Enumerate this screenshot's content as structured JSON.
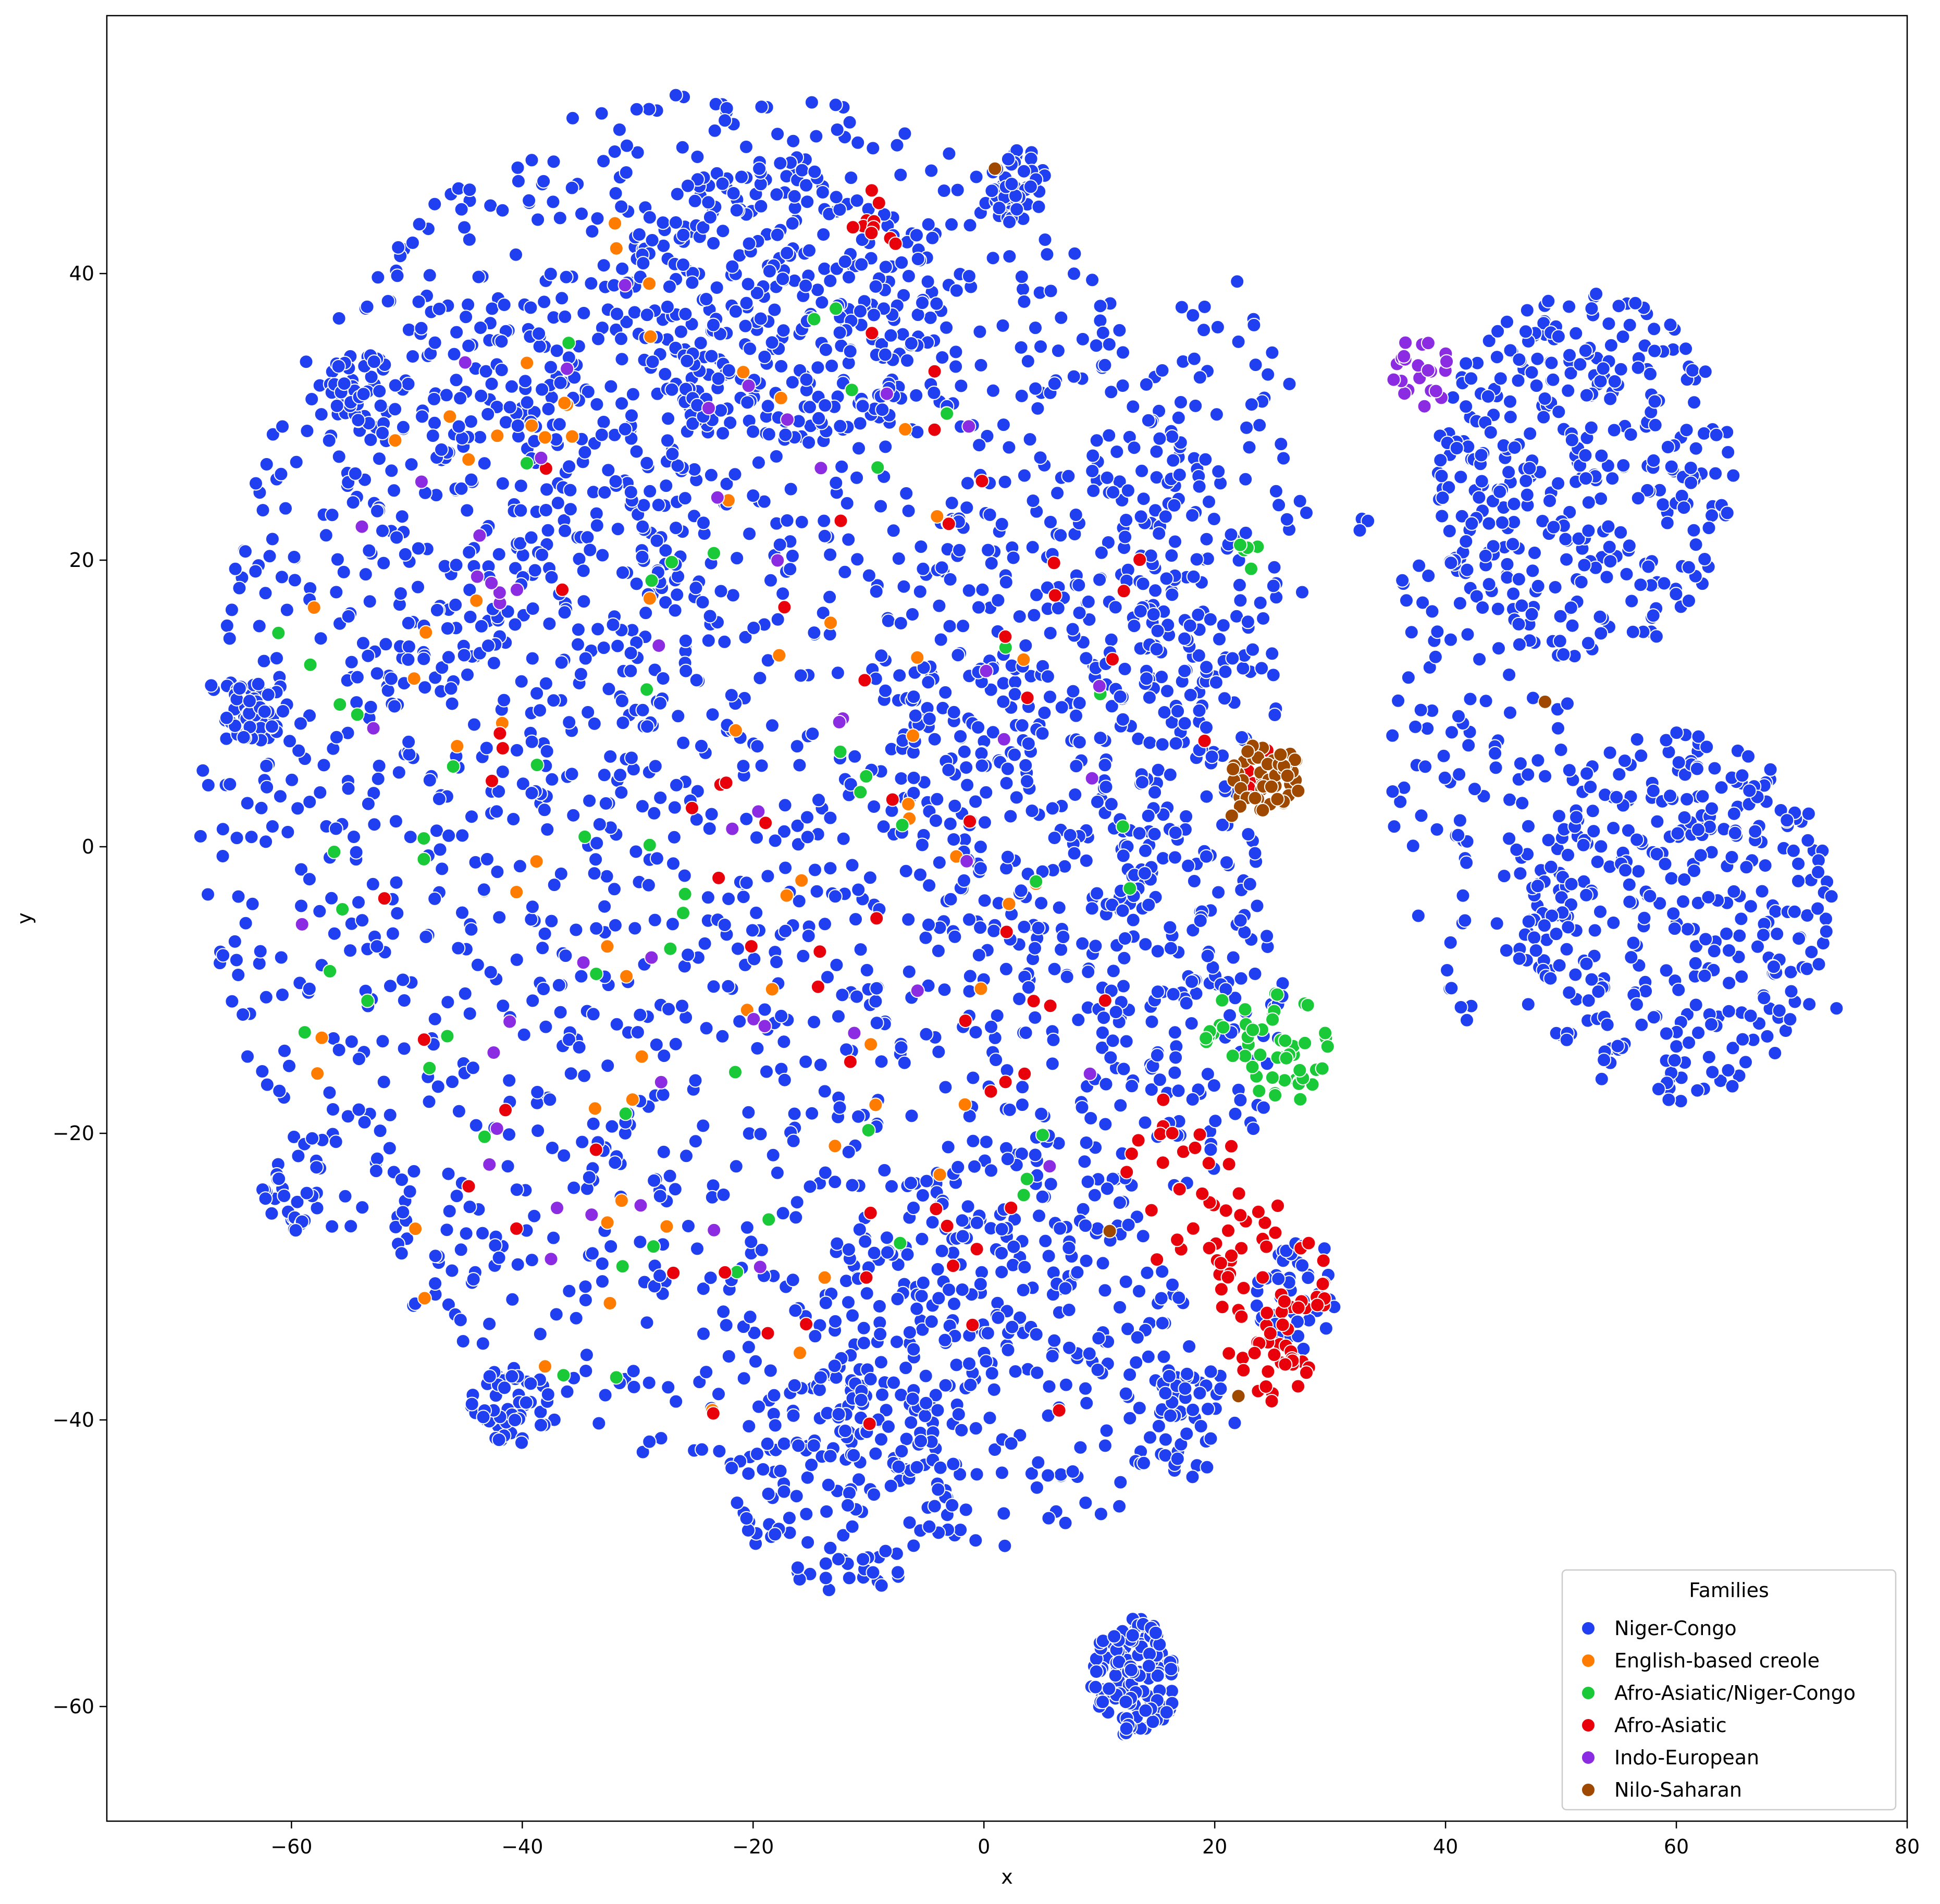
{
  "chart_data": {
    "type": "scatter",
    "title": "",
    "xlabel": "x",
    "ylabel": "y",
    "xlim": [
      -76,
      80
    ],
    "ylim": [
      -68,
      58
    ],
    "x_ticks": [
      -60,
      -40,
      -20,
      0,
      20,
      40,
      60,
      80
    ],
    "y_ticks": [
      -60,
      -40,
      -20,
      0,
      20,
      40
    ],
    "x_tick_labels": [
      "−60",
      "−40",
      "−20",
      "0",
      "20",
      "40",
      "60",
      "80"
    ],
    "y_tick_labels": [
      "−60",
      "−40",
      "−20",
      "0",
      "20",
      "40"
    ],
    "grid": false,
    "legend": {
      "title": "Families",
      "placement": "lower-right"
    },
    "series": [
      {
        "name": "Niger-Congo",
        "color": "#1f3ff0",
        "clusters": [
          {
            "cx": -22,
            "cy": 5,
            "rx": 46,
            "ry": 48,
            "n": 1900,
            "dist": "disk"
          },
          {
            "cx": -18,
            "cy": 38,
            "rx": 14,
            "ry": 10,
            "n": 250,
            "dist": "disk"
          },
          {
            "cx": -40,
            "cy": 20,
            "rx": 16,
            "ry": 18,
            "n": 220,
            "dist": "disk"
          },
          {
            "cx": 2,
            "cy": -35,
            "rx": 16,
            "ry": 14,
            "n": 260,
            "dist": "disk"
          },
          {
            "cx": -12,
            "cy": -44,
            "rx": 10,
            "ry": 8,
            "n": 150,
            "dist": "disk"
          },
          {
            "cx": 6,
            "cy": 10,
            "rx": 14,
            "ry": 18,
            "n": 200,
            "dist": "disk"
          },
          {
            "cx": 60,
            "cy": -5,
            "rx": 14,
            "ry": 13,
            "n": 360,
            "dist": "disk"
          },
          {
            "cx": 52,
            "cy": 26,
            "rx": 13,
            "ry": 13,
            "n": 330,
            "dist": "disk"
          },
          {
            "cx": 44,
            "cy": 8,
            "rx": 9,
            "ry": 22,
            "n": 150,
            "dist": "disk"
          },
          {
            "cx": 13,
            "cy": -58,
            "rx": 3.8,
            "ry": 4.2,
            "n": 140,
            "dist": "disk"
          },
          {
            "cx": 3,
            "cy": 46,
            "rx": 2.6,
            "ry": 2.8,
            "n": 45,
            "dist": "disk"
          },
          {
            "cx": -63,
            "cy": 9.5,
            "rx": 2.7,
            "ry": 2.2,
            "n": 40,
            "dist": "disk"
          },
          {
            "cx": -54,
            "cy": 32,
            "rx": 2.8,
            "ry": 2.8,
            "n": 40,
            "dist": "disk"
          },
          {
            "cx": -41,
            "cy": -39,
            "rx": 3.5,
            "ry": 2.7,
            "n": 45,
            "dist": "disk"
          },
          {
            "cx": 27,
            "cy": -31,
            "rx": 3.5,
            "ry": 4.5,
            "n": 45,
            "dist": "disk"
          },
          {
            "cx": 20,
            "cy": 22,
            "rx": 8,
            "ry": 18,
            "n": 120,
            "dist": "disk"
          },
          {
            "cx": 18,
            "cy": -10,
            "rx": 8,
            "ry": 14,
            "n": 110,
            "dist": "disk"
          },
          {
            "cx": -60,
            "cy": -24,
            "rx": 3,
            "ry": 3,
            "n": 30,
            "dist": "disk"
          },
          {
            "cx": 18,
            "cy": -40,
            "rx": 4,
            "ry": 4,
            "n": 45,
            "dist": "disk"
          },
          {
            "cx": -22,
            "cy": 51,
            "rx": 0.8,
            "ry": 0.8,
            "n": 3,
            "dist": "disk"
          },
          {
            "cx": -68,
            "cy": 0.5,
            "rx": 0.5,
            "ry": 0.5,
            "n": 1,
            "dist": "disk"
          },
          {
            "cx": 74,
            "cy": -11.5,
            "rx": 0.5,
            "ry": 0.5,
            "n": 1,
            "dist": "disk"
          },
          {
            "cx": 33,
            "cy": 22.5,
            "rx": 1.5,
            "ry": 0.5,
            "n": 3,
            "dist": "disk"
          }
        ]
      },
      {
        "name": "English-based creole",
        "color": "#ff7c00",
        "clusters": [
          {
            "cx": -28,
            "cy": 0,
            "rx": 34,
            "ry": 40,
            "n": 55,
            "dist": "disk"
          },
          {
            "cx": -40,
            "cy": 30,
            "rx": 6,
            "ry": 8,
            "n": 8,
            "dist": "disk"
          },
          {
            "cx": -30,
            "cy": 42,
            "rx": 3,
            "ry": 3,
            "n": 3,
            "dist": "disk"
          }
        ]
      },
      {
        "name": "Afro-Asiatic/Niger-Congo",
        "color": "#1ac938",
        "clusters": [
          {
            "cx": 26,
            "cy": -14,
            "rx": 4,
            "ry": 4,
            "n": 40,
            "dist": "disk"
          },
          {
            "cx": 21,
            "cy": -12,
            "rx": 2.5,
            "ry": 3,
            "n": 12,
            "dist": "disk"
          },
          {
            "cx": 23.5,
            "cy": 20.5,
            "rx": 1.5,
            "ry": 1.2,
            "n": 5,
            "dist": "disk"
          },
          {
            "cx": -25,
            "cy": 0,
            "rx": 40,
            "ry": 40,
            "n": 55,
            "dist": "disk"
          }
        ]
      },
      {
        "name": "Afro-Asiatic",
        "color": "#e8000b",
        "clusters": [
          {
            "cx": 25,
            "cy": -32,
            "rx": 5,
            "ry": 7,
            "n": 65,
            "dist": "disk"
          },
          {
            "cx": 18,
            "cy": -24,
            "rx": 6,
            "ry": 6,
            "n": 30,
            "dist": "disk"
          },
          {
            "cx": -10,
            "cy": 43.5,
            "rx": 3,
            "ry": 2.5,
            "n": 10,
            "dist": "disk"
          },
          {
            "cx": 24,
            "cy": 5.5,
            "rx": 2.5,
            "ry": 1.5,
            "n": 8,
            "dist": "disk"
          },
          {
            "cx": -15,
            "cy": -5,
            "rx": 38,
            "ry": 42,
            "n": 65,
            "dist": "disk"
          }
        ]
      },
      {
        "name": "Indo-European",
        "color": "#8b2be2",
        "clusters": [
          {
            "cx": 38,
            "cy": 33.5,
            "rx": 3,
            "ry": 3,
            "n": 22,
            "dist": "disk"
          },
          {
            "cx": -25,
            "cy": 0,
            "rx": 38,
            "ry": 40,
            "n": 45,
            "dist": "disk"
          },
          {
            "cx": -42,
            "cy": 20,
            "rx": 3,
            "ry": 3,
            "n": 6,
            "dist": "disk"
          }
        ]
      },
      {
        "name": "Nilo-Saharan",
        "color": "#9f4800",
        "clusters": [
          {
            "cx": 24.5,
            "cy": 5,
            "rx": 3.2,
            "ry": 2.4,
            "n": 48,
            "dist": "disk"
          },
          {
            "cx": 23,
            "cy": 2.5,
            "rx": 2,
            "ry": 1,
            "n": 5,
            "dist": "disk"
          },
          {
            "cx": 1,
            "cy": 47,
            "rx": 0.4,
            "ry": 0.4,
            "n": 1,
            "dist": "disk"
          },
          {
            "cx": 49,
            "cy": 10,
            "rx": 0.4,
            "ry": 0.4,
            "n": 1,
            "dist": "disk"
          },
          {
            "cx": 11,
            "cy": -27,
            "rx": 0.4,
            "ry": 0.4,
            "n": 1,
            "dist": "disk"
          },
          {
            "cx": 22,
            "cy": -38,
            "rx": 0.5,
            "ry": 0.5,
            "n": 1,
            "dist": "disk"
          }
        ]
      }
    ]
  }
}
